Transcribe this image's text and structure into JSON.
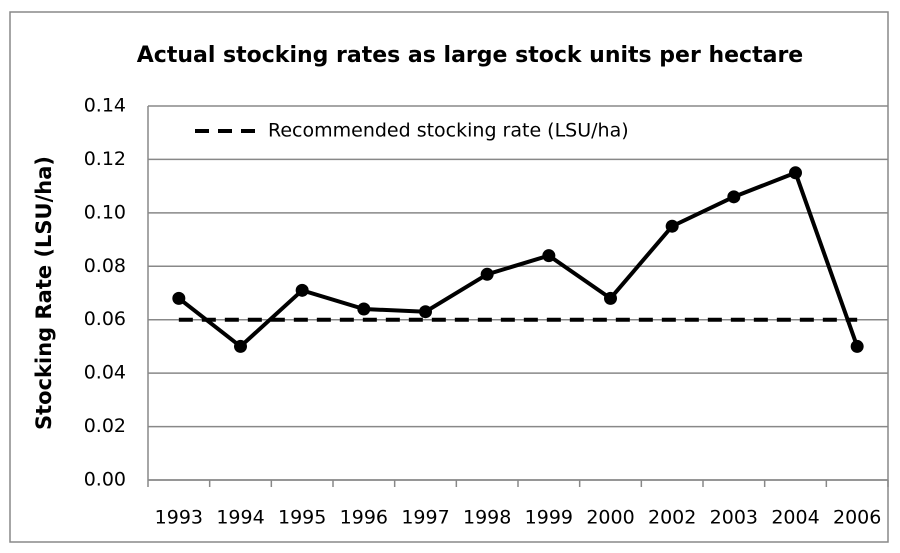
{
  "chart_data": {
    "type": "line",
    "title": "Actual stocking rates as large stock units per hectare",
    "y_label": "Stocking Rate (LSU/ha)",
    "categories": [
      "1993",
      "1994",
      "1995",
      "1996",
      "1997",
      "1998",
      "1999",
      "2000",
      "2002",
      "2003",
      "2004",
      "2006"
    ],
    "series": [
      {
        "color": "#000000",
        "marker": true,
        "dash": false,
        "values": [
          0.068,
          0.05,
          0.071,
          0.064,
          0.063,
          0.077,
          0.084,
          0.068,
          0.095,
          0.106,
          0.115,
          0.05
        ]
      },
      {
        "name": "Recommended stocking rate (LSU/ha)",
        "color": "#000000",
        "marker": false,
        "dash": true,
        "values": [
          0.06,
          0.06,
          0.06,
          0.06,
          0.06,
          0.06,
          0.06,
          0.06,
          0.06,
          0.06,
          0.06,
          0.06
        ]
      }
    ],
    "ylim": [
      0,
      0.14
    ],
    "yticks": [
      {
        "value": 0,
        "label": "0.00"
      },
      {
        "value": 0.02,
        "label": "0.02"
      },
      {
        "value": 0.04,
        "label": "0.04"
      },
      {
        "value": 0.06,
        "label": "0.06"
      },
      {
        "value": 0.08,
        "label": "0.08"
      },
      {
        "value": 0.1,
        "label": "0.10"
      },
      {
        "value": 0.12,
        "label": "0.12"
      },
      {
        "value": 0.14,
        "label": "0.14"
      }
    ],
    "grid": true,
    "legend": "top-left"
  }
}
